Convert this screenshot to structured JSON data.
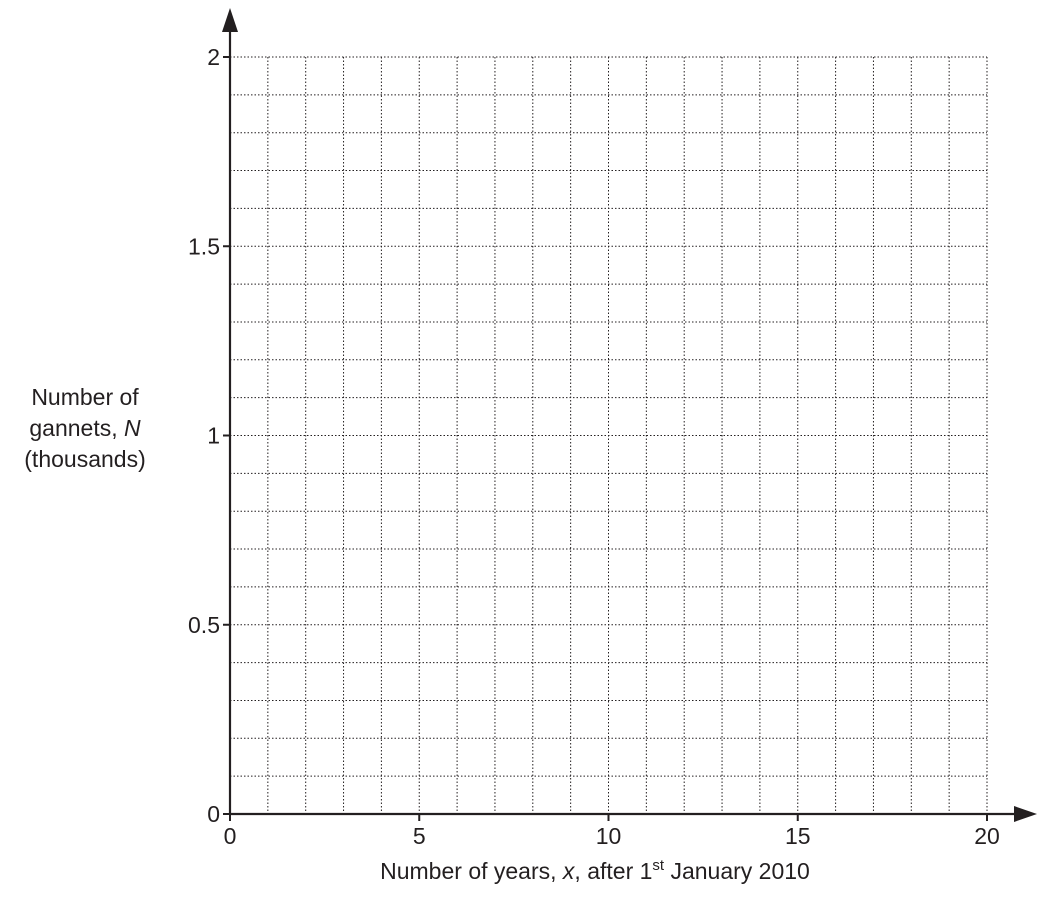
{
  "chart_data": {
    "type": "scatter",
    "title": "",
    "series": [],
    "x_axis": {
      "label_parts": [
        "Number of years, ",
        "x",
        ", after 1",
        "st",
        " January 2010"
      ],
      "range": [
        0,
        20
      ],
      "ticks": [
        {
          "value": 0,
          "label": "0"
        },
        {
          "value": 5,
          "label": "5"
        },
        {
          "value": 10,
          "label": "10"
        },
        {
          "value": 15,
          "label": "15"
        },
        {
          "value": 20,
          "label": "20"
        }
      ],
      "grid_step": 1
    },
    "y_axis": {
      "label_lines": [
        "Number of",
        "gannets, ",
        "N",
        "(thousands)"
      ],
      "range": [
        0,
        2
      ],
      "ticks": [
        {
          "value": 0,
          "label": "0"
        },
        {
          "value": 0.5,
          "label": "0.5"
        },
        {
          "value": 1,
          "label": "1"
        },
        {
          "value": 1.5,
          "label": "1.5"
        },
        {
          "value": 2,
          "label": "2"
        }
      ],
      "grid_step": 0.1
    },
    "grid": true,
    "grid_style": "dotted",
    "colors": {
      "axis": "#231f20",
      "grid": "#231f20",
      "text": "#231f20"
    }
  }
}
